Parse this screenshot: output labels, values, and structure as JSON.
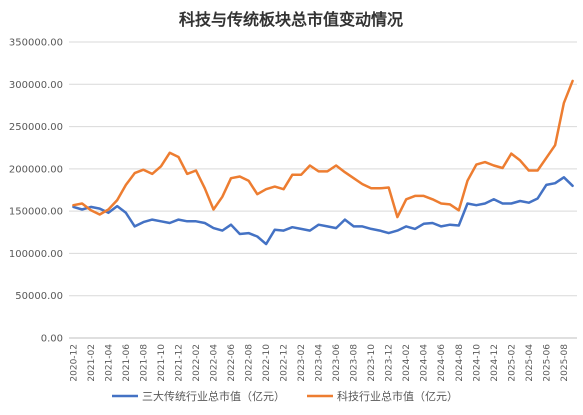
{
  "chart_data": {
    "type": "line",
    "title": "科技与传统板块总市值变动情况",
    "xlabel": "",
    "ylabel": "",
    "ylim": [
      0,
      350000
    ],
    "yticks": [
      "0.00",
      "50000.00",
      "100000.00",
      "150000.00",
      "200000.00",
      "250000.00",
      "300000.00",
      "350000.00"
    ],
    "grid": true,
    "legend_position": "bottom",
    "x": [
      "2020-12",
      "2021-01",
      "2021-02",
      "2021-03",
      "2021-04",
      "2021-05",
      "2021-06",
      "2021-07",
      "2021-08",
      "2021-09",
      "2021-10",
      "2021-11",
      "2021-12",
      "2022-01",
      "2022-02",
      "2022-03",
      "2022-04",
      "2022-05",
      "2022-06",
      "2022-07",
      "2022-08",
      "2022-09",
      "2022-10",
      "2022-11",
      "2022-12",
      "2023-01",
      "2023-02",
      "2023-03",
      "2023-04",
      "2023-05",
      "2023-06",
      "2023-07",
      "2023-08",
      "2023-09",
      "2023-10",
      "2023-11",
      "2023-12",
      "2024-01",
      "2024-02",
      "2024-03",
      "2024-04",
      "2024-05",
      "2024-06",
      "2024-07",
      "2024-08",
      "2024-09",
      "2024-10",
      "2024-11",
      "2024-12",
      "2025-01",
      "2025-02",
      "2025-03",
      "2025-04",
      "2025-05",
      "2025-06",
      "2025-07",
      "2025-08",
      "2025-09"
    ],
    "xtick_labels": [
      "2020-12",
      "2021-02",
      "2021-04",
      "2021-06",
      "2021-08",
      "2021-10",
      "2021-12",
      "2022-02",
      "2022-04",
      "2022-06",
      "2022-08",
      "2022-10",
      "2022-12",
      "2023-02",
      "2023-04",
      "2023-06",
      "2023-08",
      "2023-10",
      "2023-12",
      "2024-02",
      "2024-04",
      "2024-06",
      "2024-08",
      "2024-10",
      "2024-12",
      "2025-02",
      "2025-04",
      "2025-06",
      "2025-08"
    ],
    "series": [
      {
        "name": "三大传统行业总市值（亿元）",
        "color": "#4472c4",
        "values": [
          155000,
          152000,
          155000,
          153000,
          148000,
          156000,
          148000,
          132000,
          137000,
          140000,
          138000,
          136000,
          140000,
          138000,
          138000,
          136000,
          130000,
          127000,
          134000,
          123000,
          124000,
          120000,
          111000,
          128000,
          127000,
          131000,
          129000,
          127000,
          134000,
          132000,
          130000,
          140000,
          132000,
          132000,
          129000,
          127000,
          124000,
          127000,
          132000,
          129000,
          135000,
          136000,
          132000,
          134000,
          133000,
          159000,
          157000,
          159000,
          164000,
          159000,
          159000,
          162000,
          160000,
          165000,
          181000,
          183000,
          190000,
          180000
        ]
      },
      {
        "name": "科技行业总市值（亿元）",
        "color": "#ed7d31",
        "values": [
          157000,
          159000,
          151000,
          146000,
          152000,
          163000,
          181000,
          195000,
          199000,
          194000,
          203000,
          219000,
          214000,
          194000,
          198000,
          177000,
          152000,
          167000,
          189000,
          191000,
          186000,
          170000,
          176000,
          179000,
          176000,
          193000,
          193000,
          204000,
          197000,
          197000,
          204000,
          196000,
          189000,
          182000,
          177000,
          177000,
          178000,
          143000,
          164000,
          168000,
          168000,
          164000,
          159000,
          158000,
          151000,
          186000,
          205000,
          208000,
          204000,
          201000,
          218000,
          210000,
          198000,
          198000,
          213000,
          228000,
          278000,
          304000
        ]
      }
    ]
  }
}
